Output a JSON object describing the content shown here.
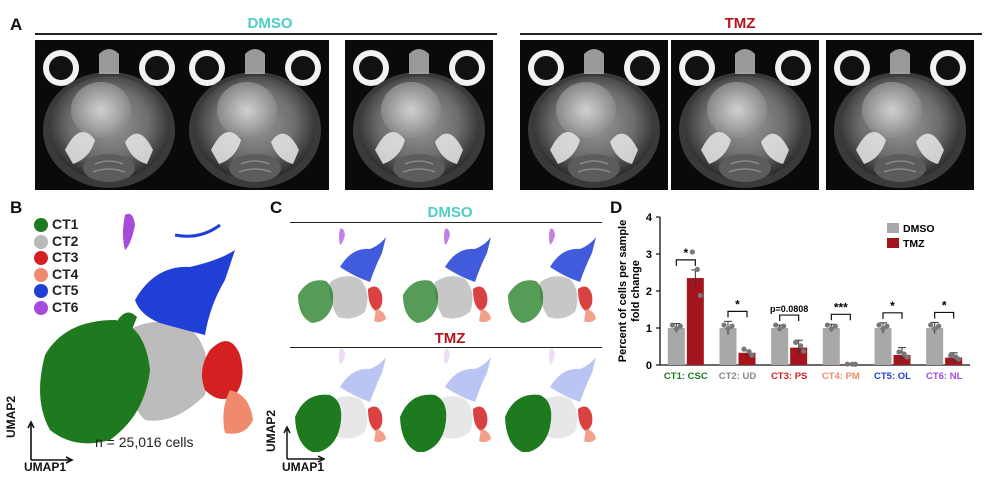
{
  "panel_labels": {
    "a": "A",
    "b": "B",
    "c": "C",
    "d": "D"
  },
  "panel_a": {
    "dmso_label": "DMSO",
    "tmz_label": "TMZ",
    "dmso_color": "#4ecdc4",
    "tmz_color": "#b5141c"
  },
  "panel_b": {
    "legend": [
      {
        "label": "CT1",
        "color": "#1e7a1e"
      },
      {
        "label": "CT2",
        "color": "#b9b9b9"
      },
      {
        "label": "CT3",
        "color": "#d42020"
      },
      {
        "label": "CT4",
        "color": "#f08a6e"
      },
      {
        "label": "CT5",
        "color": "#1f3fd6"
      },
      {
        "label": "CT6",
        "color": "#a64ad9"
      }
    ],
    "n_cells_text": "n = 25,016 cells",
    "xaxis": "UMAP1",
    "yaxis": "UMAP2"
  },
  "panel_c": {
    "dmso_label": "DMSO",
    "tmz_label": "TMZ",
    "xaxis": "UMAP1",
    "yaxis": "UMAP2"
  },
  "chart_data": {
    "type": "bar",
    "ylabel_line1": "Percent of cells per sample",
    "ylabel_line2": "fold change",
    "ylim": [
      0,
      4
    ],
    "yticks": [
      "0",
      "1",
      "2",
      "3",
      "4"
    ],
    "legend_position": "top-right",
    "categories": [
      "CT1: CSC",
      "CT2: UD",
      "CT3: PS",
      "CT4: PM",
      "CT5: OL",
      "CT6: NL"
    ],
    "category_colors": [
      "#1e7a1e",
      "#888888",
      "#d42020",
      "#f08a6e",
      "#1f3fd6",
      "#a64ad9"
    ],
    "series": [
      {
        "name": "DMSO",
        "color": "#a8a8a8",
        "values": [
          1.0,
          1.0,
          1.0,
          1.0,
          1.0,
          1.0
        ],
        "errors": [
          0.12,
          0.18,
          0.08,
          0.1,
          0.14,
          0.15
        ]
      },
      {
        "name": "TMZ",
        "color": "#a3141c",
        "values": [
          2.35,
          0.33,
          0.47,
          0.02,
          0.27,
          0.2
        ],
        "errors": [
          0.22,
          0.06,
          0.2,
          0.02,
          0.2,
          0.13
        ]
      }
    ],
    "significance": [
      "*",
      "*",
      "p=0.0808",
      "***",
      "*",
      "*"
    ]
  }
}
